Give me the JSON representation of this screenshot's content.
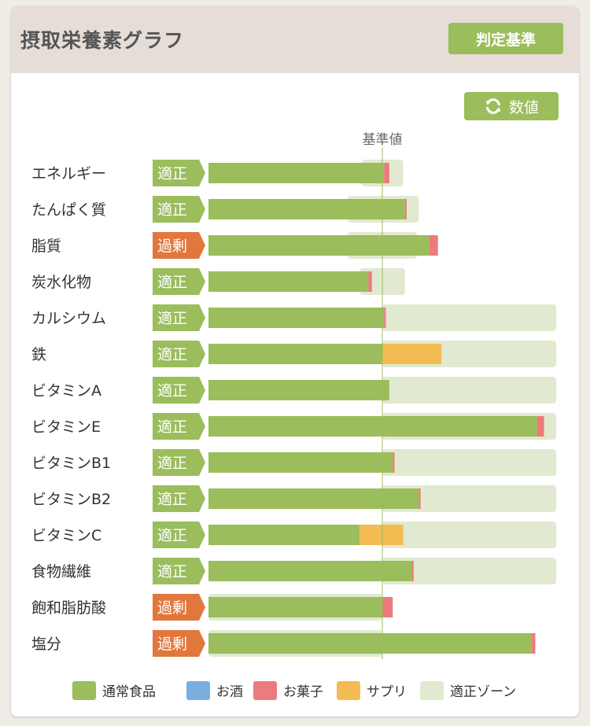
{
  "header": {
    "title": "摂取栄養素グラフ",
    "criteria_button": "判定基準"
  },
  "toolbar": {
    "values_button": "数値",
    "values_icon": "refresh-icon"
  },
  "colors": {
    "normal": "#9bbd5c",
    "alcohol": "#7aaedf",
    "snack": "#ec7b7d",
    "supplement": "#f3bb52",
    "zone": "#e1ead0",
    "appropriate": "#9bbd5c",
    "excess": "#e2773e"
  },
  "chart_data": {
    "type": "bar",
    "orientation": "horizontal",
    "stacked": true,
    "reference_label": "基準値",
    "reference_value": 100,
    "xlim": [
      0,
      200
    ],
    "unit": "% of reference",
    "categories": [
      "エネルギー",
      "たんぱく質",
      "脂質",
      "炭水化物",
      "カルシウム",
      "鉄",
      "ビタミンA",
      "ビタミンE",
      "ビタミンB1",
      "ビタミンB2",
      "ビタミンC",
      "食物繊維",
      "飽和脂肪酸",
      "塩分"
    ],
    "status": [
      "適正",
      "適正",
      "過剰",
      "適正",
      "適正",
      "適正",
      "適正",
      "適正",
      "適正",
      "適正",
      "適正",
      "適正",
      "過剰",
      "過剰"
    ],
    "status_type": [
      "appropriate",
      "appropriate",
      "excess",
      "appropriate",
      "appropriate",
      "appropriate",
      "appropriate",
      "appropriate",
      "appropriate",
      "appropriate",
      "appropriate",
      "appropriate",
      "excess",
      "excess"
    ],
    "series": [
      {
        "name": "通常食品",
        "color_key": "normal",
        "values": [
          101,
          113,
          127,
          92,
          101,
          100,
          104,
          189,
          106,
          121,
          87,
          117,
          100,
          186
        ]
      },
      {
        "name": "お酒",
        "color_key": "alcohol",
        "values": [
          0,
          0,
          0,
          0,
          0,
          0,
          0,
          0,
          0,
          0,
          0,
          0,
          0,
          0
        ]
      },
      {
        "name": "お菓子",
        "color_key": "snack",
        "values": [
          3,
          1,
          5,
          2,
          1,
          0,
          0,
          4,
          1,
          1,
          0,
          1,
          6,
          2
        ]
      },
      {
        "name": "サプリ",
        "color_key": "supplement",
        "values": [
          0,
          0,
          0,
          0,
          0,
          34,
          0,
          0,
          0,
          0,
          25,
          0,
          0,
          0
        ]
      }
    ],
    "zones": [
      [
        88,
        112
      ],
      [
        80,
        121
      ],
      [
        80,
        120
      ],
      [
        87,
        113
      ],
      [
        100,
        200
      ],
      [
        100,
        200
      ],
      [
        100,
        200
      ],
      [
        100,
        200
      ],
      [
        100,
        200
      ],
      [
        100,
        200
      ],
      [
        100,
        200
      ],
      [
        100,
        200
      ],
      [
        0,
        100
      ],
      [
        0,
        100
      ]
    ],
    "legend": [
      {
        "name": "通常食品",
        "color_key": "normal"
      },
      {
        "name": "お酒",
        "color_key": "alcohol"
      },
      {
        "name": "お菓子",
        "color_key": "snack"
      },
      {
        "name": "サプリ",
        "color_key": "supplement"
      },
      {
        "name": "適正ゾーン",
        "color_key": "zone"
      }
    ]
  }
}
